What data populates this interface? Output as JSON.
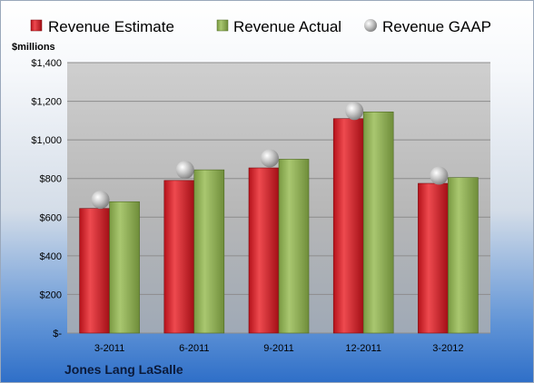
{
  "chart_data": {
    "type": "bar",
    "categories": [
      "3-2011",
      "6-2011",
      "9-2011",
      "12-2011",
      "3-2012"
    ],
    "series": [
      {
        "name": "Revenue Estimate",
        "type": "bar",
        "color": "#cc1f26",
        "values": [
          645,
          790,
          855,
          1110,
          775
        ]
      },
      {
        "name": "Revenue Actual",
        "type": "bar",
        "color": "#8fb052",
        "values": [
          680,
          845,
          900,
          1145,
          805
        ]
      },
      {
        "name": "Revenue GAAP",
        "type": "marker",
        "color": "#a6a6a6",
        "values": [
          690,
          845,
          905,
          1150,
          815
        ]
      }
    ],
    "ylabel": "$millions",
    "ylim": [
      0,
      1400
    ],
    "yticks": [
      0,
      200,
      400,
      600,
      800,
      1000,
      1200,
      1400
    ],
    "ytick_labels": [
      "$-",
      "$200",
      "$400",
      "$600",
      "$800",
      "$1,000",
      "$1,200",
      "$1,400"
    ],
    "grid": true,
    "legend": "top",
    "footer": "Jones Lang LaSalle"
  }
}
